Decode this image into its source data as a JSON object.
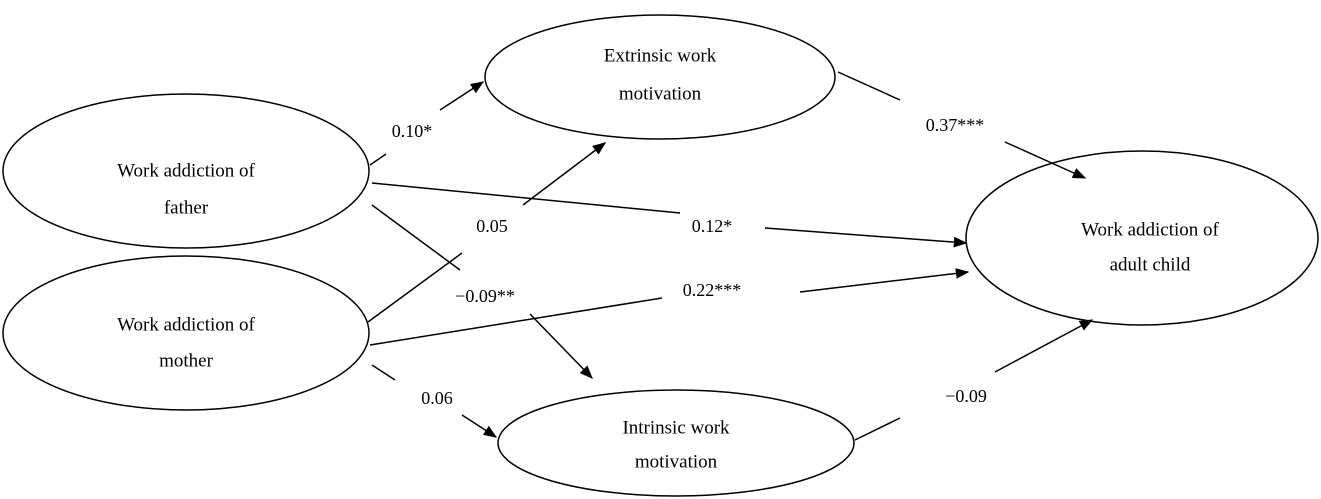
{
  "nodes": [
    {
      "label": [
        "Extrinsic work",
        "motivation"
      ]
    },
    {
      "label": [
        "Work addiction of",
        "father"
      ]
    },
    {
      "label": [
        "Work addiction of",
        "mother"
      ]
    },
    {
      "label": [
        "Work addiction of",
        "adult child"
      ]
    },
    {
      "label": [
        "Intrinsic work",
        "motivation"
      ]
    }
  ],
  "edges": [
    {
      "label": "0.10*"
    },
    {
      "label": "0.37***"
    },
    {
      "label": "0.12*"
    },
    {
      "label": "0.05"
    },
    {
      "label": "−0.09**"
    },
    {
      "label": "0.22***"
    },
    {
      "label": "0.06"
    },
    {
      "label": "−0.09"
    }
  ]
}
